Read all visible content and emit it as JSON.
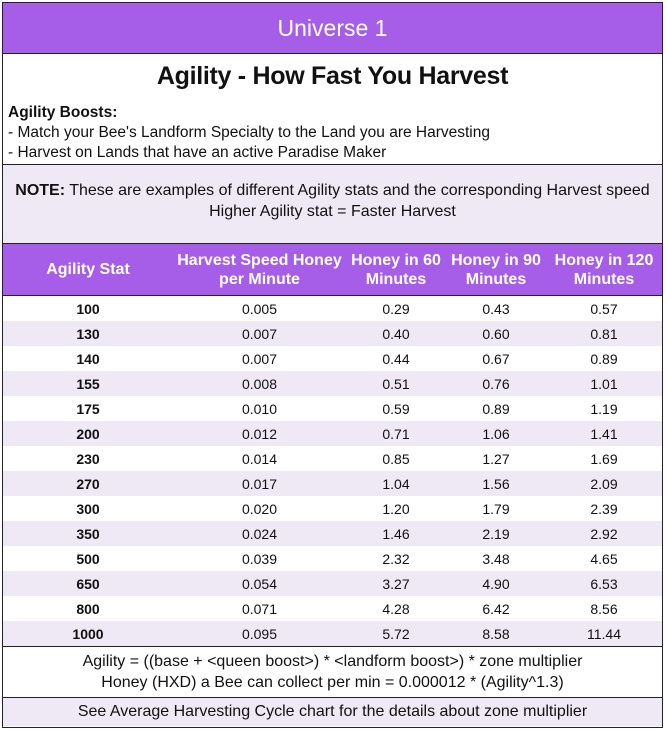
{
  "banner": "Universe 1",
  "title": "Agility - How Fast You Harvest",
  "boosts": {
    "heading": "Agility Boosts:",
    "items": [
      "- Match your Bee's Landform Specialty to the Land you are Harvesting",
      "- Harvest on Lands that have an active Paradise Maker"
    ]
  },
  "note": {
    "label": "NOTE:",
    "text": " These are examples of different Agility stats and the corresponding Harvest speed",
    "line2": "Higher Agility stat = Faster Harvest"
  },
  "table": {
    "headers": [
      "Agility Stat",
      "Harvest Speed Honey per Minute",
      "Honey in 60 Minutes",
      "Honey in 90 Minutes",
      "Honey in 120 Minutes"
    ],
    "rows": [
      [
        "100",
        "0.005",
        "0.29",
        "0.43",
        "0.57"
      ],
      [
        "130",
        "0.007",
        "0.40",
        "0.60",
        "0.81"
      ],
      [
        "140",
        "0.007",
        "0.44",
        "0.67",
        "0.89"
      ],
      [
        "155",
        "0.008",
        "0.51",
        "0.76",
        "1.01"
      ],
      [
        "175",
        "0.010",
        "0.59",
        "0.89",
        "1.19"
      ],
      [
        "200",
        "0.012",
        "0.71",
        "1.06",
        "1.41"
      ],
      [
        "230",
        "0.014",
        "0.85",
        "1.27",
        "1.69"
      ],
      [
        "270",
        "0.017",
        "1.04",
        "1.56",
        "2.09"
      ],
      [
        "300",
        "0.020",
        "1.20",
        "1.79",
        "2.39"
      ],
      [
        "350",
        "0.024",
        "1.46",
        "2.19",
        "2.92"
      ],
      [
        "500",
        "0.039",
        "2.32",
        "3.48",
        "4.65"
      ],
      [
        "650",
        "0.054",
        "3.27",
        "4.90",
        "6.53"
      ],
      [
        "800",
        "0.071",
        "4.28",
        "6.42",
        "8.56"
      ],
      [
        "1000",
        "0.095",
        "5.72",
        "8.58",
        "11.44"
      ]
    ]
  },
  "formula": {
    "line1": "Agility = ((base + <queen boost>) * <landform boost>) * zone multiplier",
    "line2": "Honey (HXD) a Bee can collect per min = 0.000012 * (Agility^1.3)"
  },
  "footer": "See Average Harvesting Cycle chart for the details about zone multiplier"
}
